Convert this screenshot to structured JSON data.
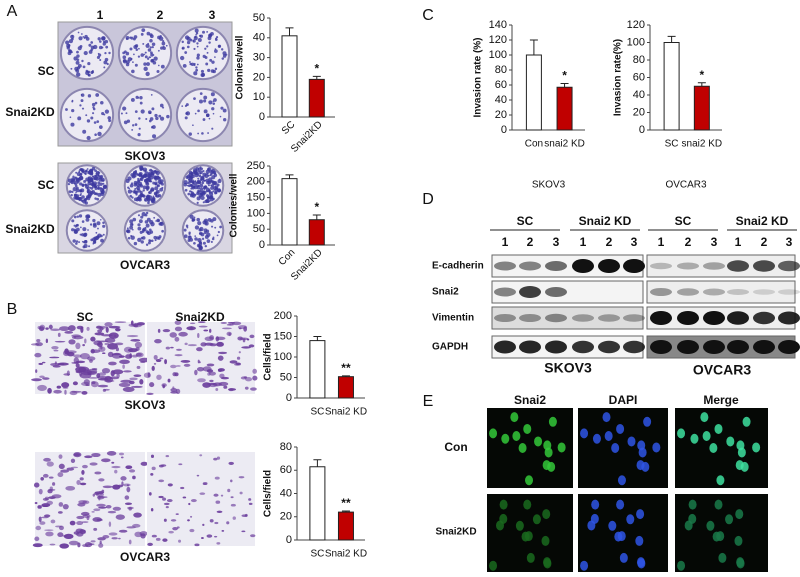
{
  "chart_data": [
    {
      "type": "bar",
      "ylabel": "Colonies/well",
      "categories": [
        "SC",
        "Snai2KD"
      ],
      "values": [
        41,
        19
      ],
      "errors": [
        4,
        1.5
      ],
      "colors": [
        "#ffffff",
        "#c00000"
      ],
      "ylim": [
        0,
        50
      ],
      "yticks": [
        0,
        10,
        20,
        30,
        40,
        50
      ],
      "annotation": "*"
    },
    {
      "type": "bar",
      "ylabel": "Colonies/well",
      "categories": [
        "Con",
        "Snai2KD"
      ],
      "values": [
        210,
        80
      ],
      "errors": [
        12,
        15
      ],
      "colors": [
        "#ffffff",
        "#c00000"
      ],
      "ylim": [
        0,
        250
      ],
      "yticks": [
        0,
        50,
        100,
        150,
        200,
        250
      ],
      "annotation": "*"
    },
    {
      "type": "bar",
      "ylabel": "Cells/field",
      "categories": [
        "SC",
        "Snai2 KD"
      ],
      "values": [
        140,
        52
      ],
      "errors": [
        10,
        2
      ],
      "colors": [
        "#ffffff",
        "#c00000"
      ],
      "ylim": [
        0,
        200
      ],
      "yticks": [
        0,
        50,
        100,
        150,
        200
      ],
      "annotation": "**"
    },
    {
      "type": "bar",
      "ylabel": "Cells/field",
      "categories": [
        "SC",
        "Snai2 KD"
      ],
      "values": [
        63,
        24
      ],
      "errors": [
        6,
        1
      ],
      "colors": [
        "#ffffff",
        "#c00000"
      ],
      "ylim": [
        0,
        80
      ],
      "yticks": [
        0,
        20,
        40,
        60,
        80
      ],
      "annotation": "**"
    },
    {
      "type": "bar",
      "ylabel": "Invasion rate (%)",
      "xlabel": "SKOV3",
      "categories": [
        "Con",
        "snai2 KD"
      ],
      "values": [
        100,
        57
      ],
      "errors": [
        20,
        5
      ],
      "colors": [
        "#ffffff",
        "#c00000"
      ],
      "ylim": [
        0,
        140
      ],
      "yticks": [
        0,
        20,
        40,
        60,
        80,
        100,
        120,
        140
      ],
      "annotation": "*"
    },
    {
      "type": "bar",
      "ylabel": "Invasion rate(%)",
      "xlabel": "OVCAR3",
      "categories": [
        "SC",
        "snai2 KD"
      ],
      "values": [
        100,
        50
      ],
      "errors": [
        7,
        4
      ],
      "colors": [
        "#ffffff",
        "#c00000"
      ],
      "ylim": [
        0,
        120
      ],
      "yticks": [
        0,
        20,
        40,
        60,
        80,
        100,
        120
      ],
      "annotation": "*"
    }
  ],
  "panel_labels": [
    "A",
    "B",
    "C",
    "D",
    "E"
  ],
  "panel_a": {
    "lanes": [
      "1",
      "2",
      "3"
    ],
    "rows_top": [
      "SC",
      "Snai2KD"
    ],
    "rows_bottom": [
      "SC",
      "Snai2KD"
    ],
    "cell_lines": [
      "SKOV3",
      "OVCAR3"
    ]
  },
  "panel_b": {
    "columns": [
      "SC",
      "Snai2KD"
    ],
    "cell_lines": [
      "SKOV3",
      "OVCAR3"
    ]
  },
  "panel_d": {
    "groups": [
      "SC",
      "Snai2 KD",
      "SC",
      "Snai2 KD"
    ],
    "lanes": [
      "1",
      "2",
      "3"
    ],
    "proteins": [
      "E-cadherin",
      "Snai2",
      "Vimentin",
      "GAPDH"
    ],
    "cell_lines": [
      "SKOV3",
      "OVCAR3"
    ]
  },
  "panel_e": {
    "columns": [
      "Snai2",
      "DAPI",
      "Merge"
    ],
    "rows": [
      "Con",
      "Snai2KD"
    ]
  }
}
